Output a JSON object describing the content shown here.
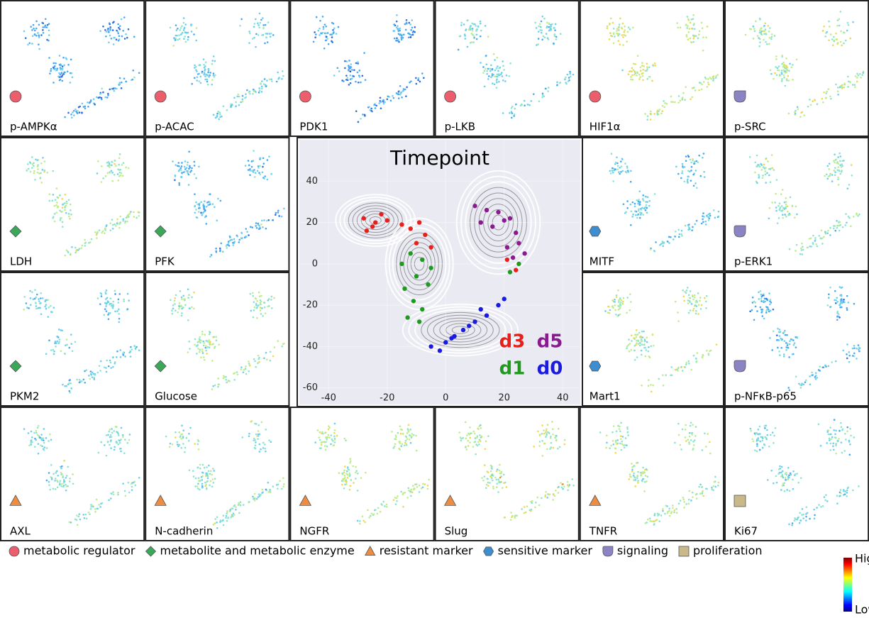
{
  "panels": [
    {
      "label": "p-AMPKα",
      "marker": "circle",
      "color": "#ec5e6c"
    },
    {
      "label": "p-ACAC",
      "marker": "circle",
      "color": "#ec5e6c"
    },
    {
      "label": "PDK1",
      "marker": "circle",
      "color": "#ec5e6c"
    },
    {
      "label": "p-LKB",
      "marker": "circle",
      "color": "#ec5e6c"
    },
    {
      "label": "HIF1α",
      "marker": "circle",
      "color": "#ec5e6c"
    },
    {
      "label": "p-SRC",
      "marker": "shield",
      "color": "#8a84c4"
    },
    {
      "label": "LDH",
      "marker": "diamond",
      "color": "#3aa858"
    },
    {
      "label": "PFK",
      "marker": "diamond",
      "color": "#3aa858"
    },
    {
      "label": "MITF",
      "marker": "hexagon",
      "color": "#3c8ed0"
    },
    {
      "label": "p-ERK1",
      "marker": "shield",
      "color": "#8a84c4"
    },
    {
      "label": "PKM2",
      "marker": "diamond",
      "color": "#3aa858"
    },
    {
      "label": "Glucose",
      "marker": "diamond",
      "color": "#3aa858"
    },
    {
      "label": "Mart1",
      "marker": "hexagon",
      "color": "#3c8ed0"
    },
    {
      "label": "p-NFκB-p65",
      "marker": "shield",
      "color": "#8a84c4"
    },
    {
      "label": "AXL",
      "marker": "triangle",
      "color": "#f08c40"
    },
    {
      "label": "N-cadherin",
      "marker": "triangle",
      "color": "#f08c40"
    },
    {
      "label": "NGFR",
      "marker": "triangle",
      "color": "#f08c40"
    },
    {
      "label": "Slug",
      "marker": "triangle",
      "color": "#f08c40"
    },
    {
      "label": "TNFR",
      "marker": "triangle",
      "color": "#f08c40"
    },
    {
      "label": "Ki67",
      "marker": "square",
      "color": "#c8b88a"
    }
  ],
  "chart_data": {
    "type": "scatter",
    "title": "Timepoint",
    "xlim": [
      -50,
      46
    ],
    "ylim": [
      -68,
      60
    ],
    "xticks": [
      -40,
      -20,
      0,
      20,
      40
    ],
    "yticks": [
      -60,
      -40,
      -20,
      0,
      20,
      40
    ],
    "series": [
      {
        "name": "d3",
        "color": "#e8201c",
        "x": [
          -28,
          -25,
          -22,
          -27,
          -24,
          -20,
          -15,
          -12,
          -9,
          -7,
          -10,
          -5,
          21,
          24
        ],
        "y": [
          22,
          18,
          24,
          16,
          20,
          21,
          19,
          17,
          20,
          14,
          10,
          8,
          2,
          -3
        ]
      },
      {
        "name": "d5",
        "color": "#8a1a90",
        "x": [
          10,
          14,
          18,
          22,
          12,
          16,
          20,
          24,
          21,
          25,
          23,
          27
        ],
        "y": [
          28,
          26,
          25,
          22,
          20,
          18,
          21,
          15,
          8,
          10,
          3,
          5
        ]
      },
      {
        "name": "d1",
        "color": "#1f9a1f",
        "x": [
          -12,
          -8,
          -5,
          -15,
          -10,
          -6,
          -14,
          -11,
          -8,
          -13,
          -9,
          25,
          22
        ],
        "y": [
          5,
          2,
          -2,
          0,
          -6,
          -10,
          -12,
          -18,
          -22,
          -26,
          -28,
          0,
          -4
        ]
      },
      {
        "name": "d0",
        "color": "#1a1ae0",
        "x": [
          -5,
          0,
          3,
          -2,
          6,
          10,
          14,
          18,
          12,
          20,
          8,
          2
        ],
        "y": [
          -40,
          -38,
          -35,
          -42,
          -32,
          -28,
          -25,
          -20,
          -22,
          -17,
          -30,
          -36
        ]
      }
    ]
  },
  "legend": [
    {
      "marker": "circle",
      "color": "#ec5e6c",
      "label": "metabolic regulator"
    },
    {
      "marker": "diamond",
      "color": "#3aa858",
      "label": "metabolite and metabolic enzyme"
    },
    {
      "marker": "triangle",
      "color": "#f08c40",
      "label": "resistant marker"
    },
    {
      "marker": "hexagon",
      "color": "#3c8ed0",
      "label": "sensitive marker"
    },
    {
      "marker": "shield",
      "color": "#8a84c4",
      "label": "signaling"
    },
    {
      "marker": "square",
      "color": "#c8b88a",
      "label": "proliferation"
    }
  ],
  "colorbar": {
    "high": "High",
    "low": "Low"
  }
}
